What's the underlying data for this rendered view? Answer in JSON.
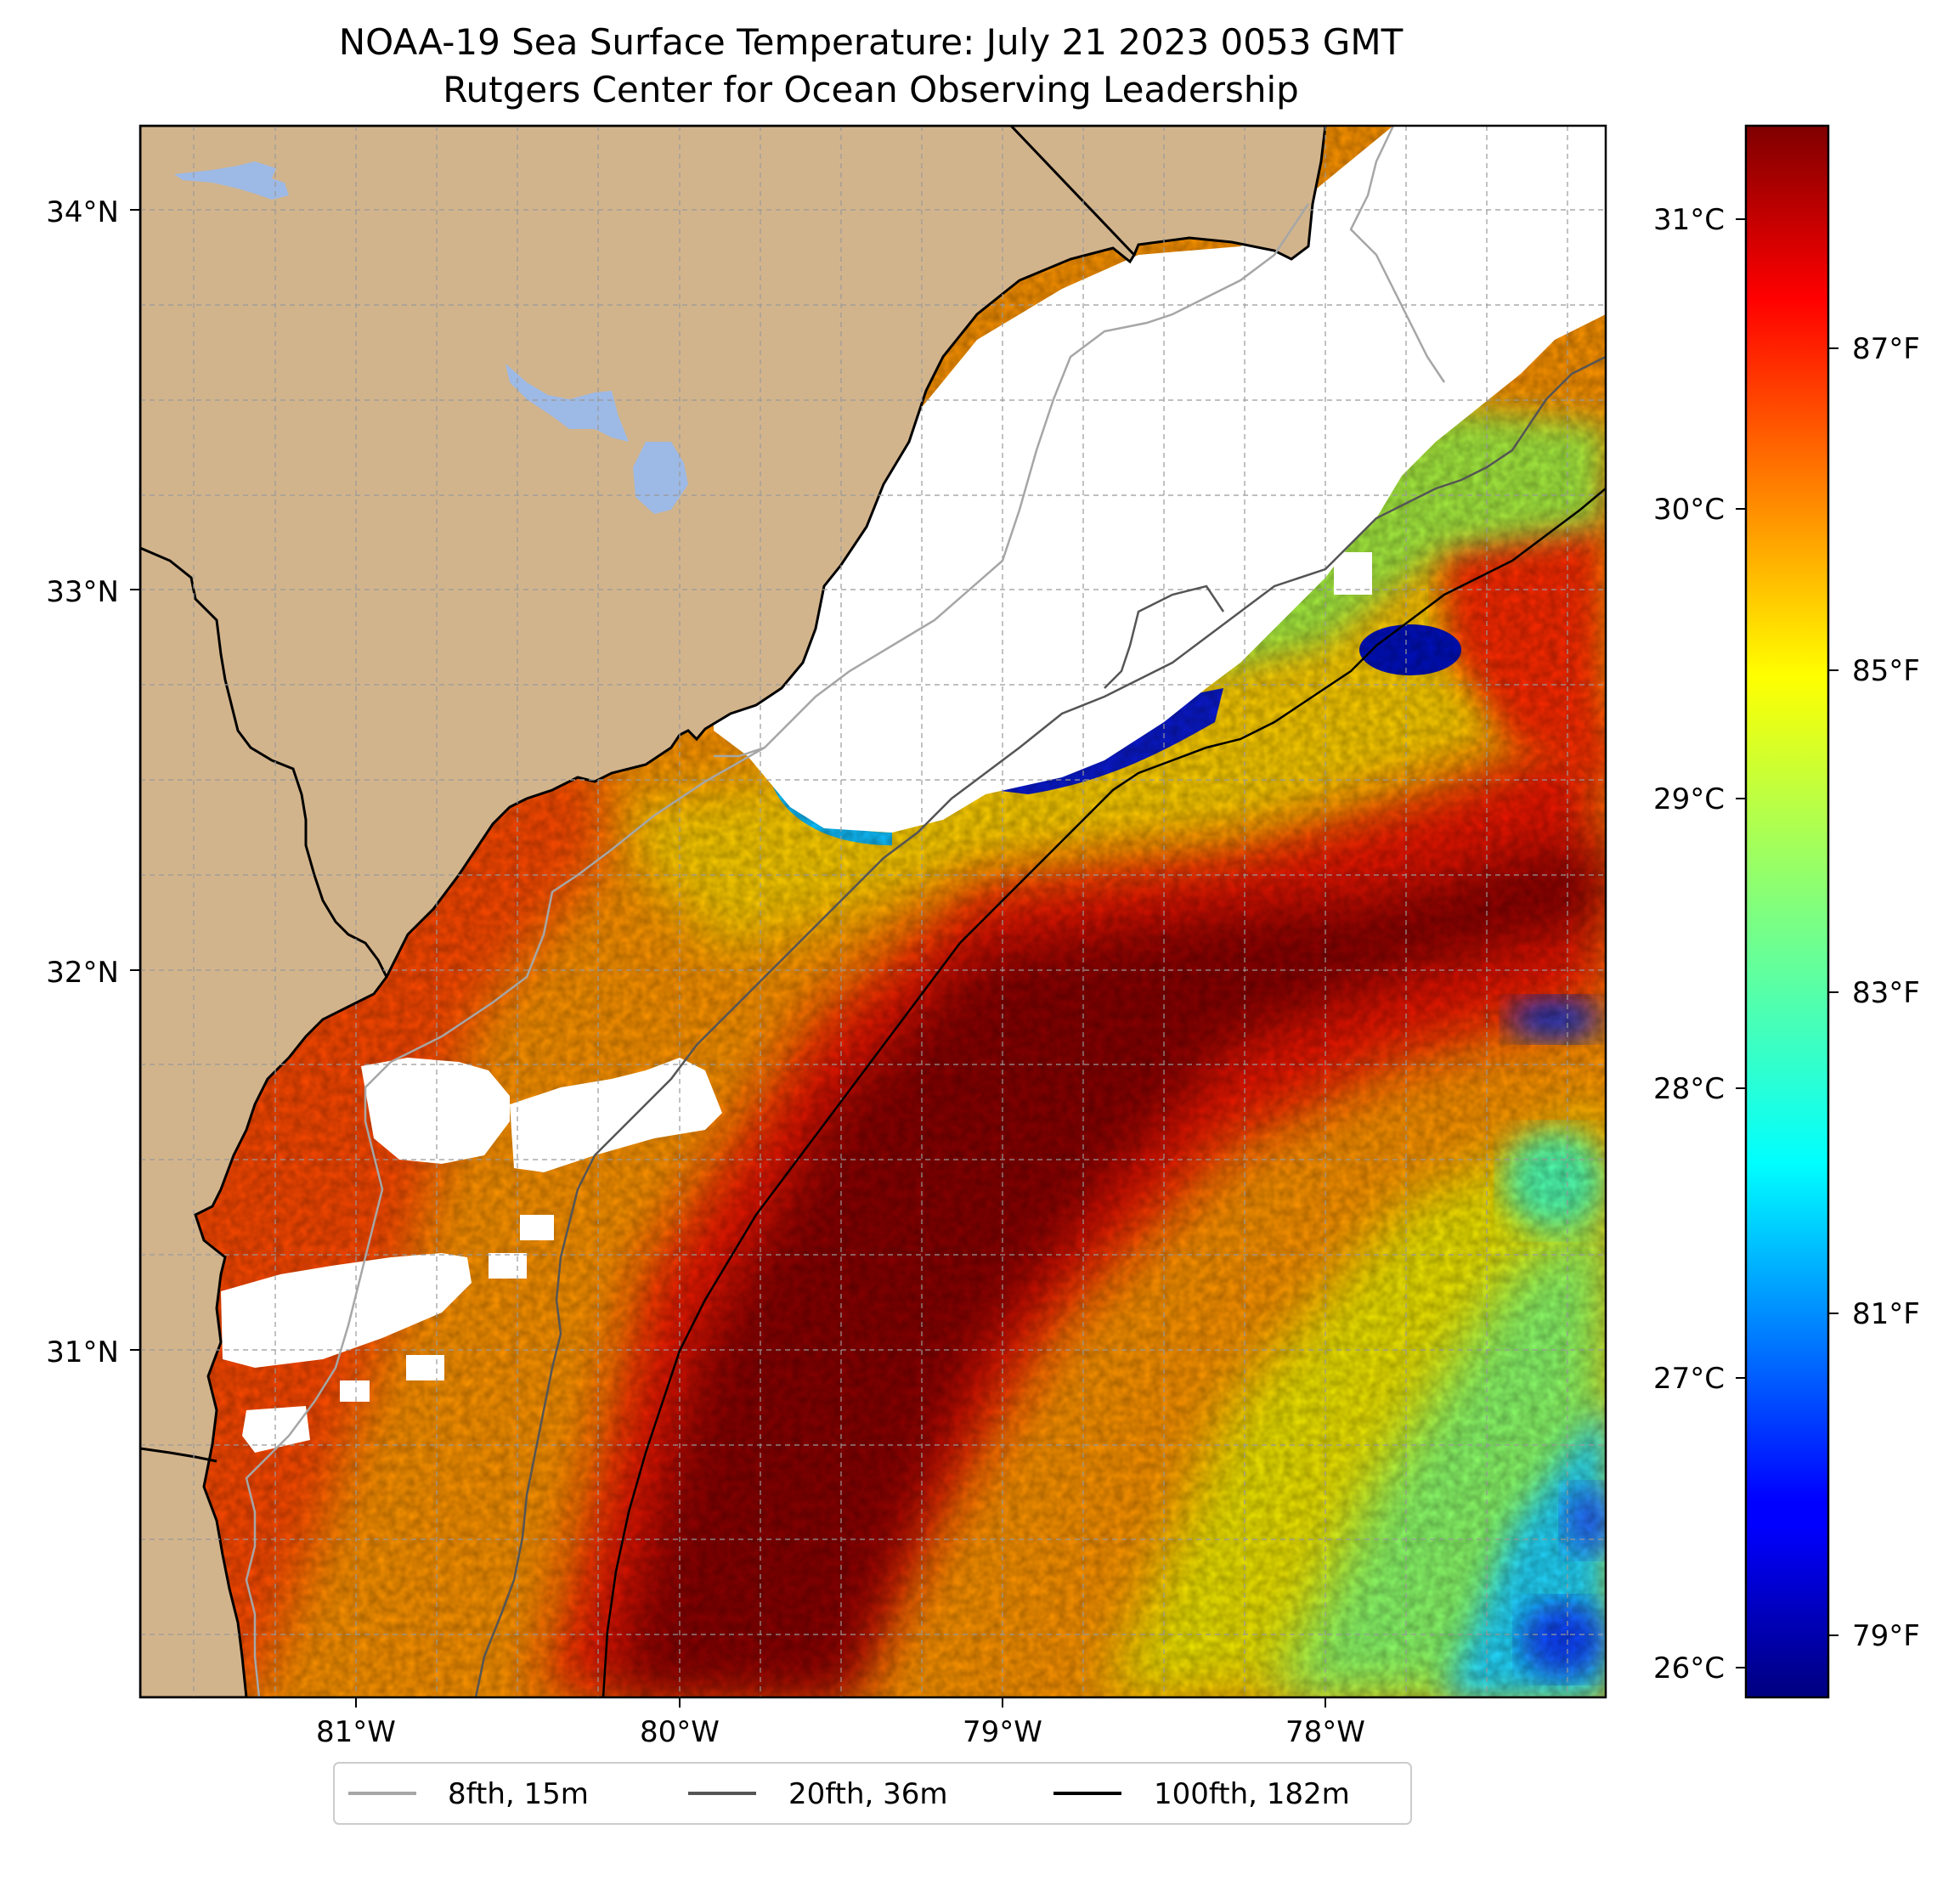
{
  "title": {
    "line1": "NOAA-19 Sea Surface Temperature: July 21 2023 0053 GMT",
    "line2": "Rutgers Center for Ocean Observing Leadership"
  },
  "map": {
    "lat_ticks": [
      "34°N",
      "33°N",
      "32°N",
      "31°N"
    ],
    "lon_ticks": [
      "81°W",
      "80°W",
      "79°W",
      "78°W"
    ],
    "lon_range": [
      -81.67,
      -77.13
    ],
    "lat_range": [
      30.08,
      34.22
    ],
    "gridlines": true,
    "colors": {
      "land": "#d2b48c",
      "lake": "#9db9e5",
      "cloud": "#ffffff"
    }
  },
  "colorbar": {
    "celsius_ticks": [
      "31°C",
      "30°C",
      "29°C",
      "28°C",
      "27°C",
      "26°C"
    ],
    "fahrenheit_ticks": [
      "87°F",
      "85°F",
      "83°F",
      "81°F",
      "79°F"
    ],
    "colormap": "jet"
  },
  "legend": {
    "items": [
      {
        "label": "8fth, 15m",
        "color": "#a6a6a6"
      },
      {
        "label": "20fth, 36m",
        "color": "#555555"
      },
      {
        "label": "100fth, 182m",
        "color": "#000000"
      }
    ],
    "placement": "bottom-center"
  }
}
